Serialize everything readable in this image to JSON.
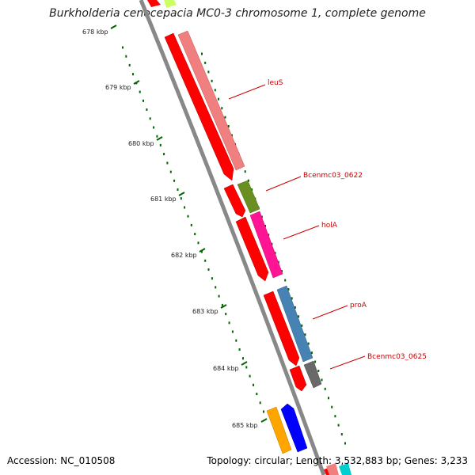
{
  "title": "Burkholderia cenocepacia MC0-3 chromosome 1, complete genome",
  "accession": "Accession: NC_010508",
  "summary": "Topology: circular; Length: 3,532,883 bp; Genes: 3,233",
  "scale": {
    "ticks": [
      "678 kbp",
      "679 kbp",
      "680 kbp",
      "681 kbp",
      "682 kbp",
      "683 kbp",
      "684 kbp",
      "685 kbp"
    ]
  },
  "genes": [
    {
      "name": "leuS",
      "color": "#f08080"
    },
    {
      "name": "Bcenmc03_0622",
      "color": "#6b8e23"
    },
    {
      "name": "holA",
      "color": "#ff1493"
    },
    {
      "name": "proA",
      "color": "#4682b4"
    },
    {
      "name": "Bcenmc03_0625",
      "color": "#696969"
    }
  ],
  "colors": {
    "cds": "#ff0000",
    "backbone": "#888888",
    "gc_tick": "#006400",
    "label_line": "#cc0000"
  }
}
